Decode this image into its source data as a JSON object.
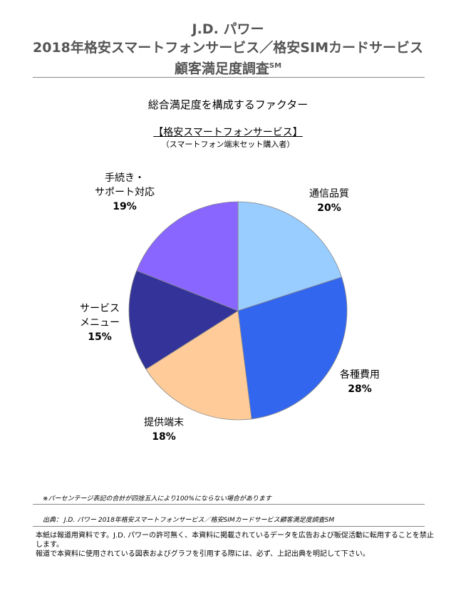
{
  "header": {
    "line1": "J.D. パワー",
    "line2": "2018年格安スマートフォンサービス／格安SIMカードサービス",
    "line3": "顧客満足度調査",
    "line3_mark": "SM"
  },
  "chart_data": {
    "type": "pie",
    "title": "総合満足度を構成するファクター",
    "subtitle": "【格安スマートフォンサービス】",
    "note": "（スマートフォン端末セット購入者）",
    "slices": [
      {
        "label_lines": [
          "通信品質"
        ],
        "value": 20,
        "pct_label": "20%",
        "color": "#99ccff"
      },
      {
        "label_lines": [
          "各種費用"
        ],
        "value": 28,
        "pct_label": "28%",
        "color": "#3366ee"
      },
      {
        "label_lines": [
          "提供端末"
        ],
        "value": 18,
        "pct_label": "18%",
        "color": "#ffcc99"
      },
      {
        "label_lines": [
          "サービス",
          "メニュー"
        ],
        "value": 15,
        "pct_label": "15%",
        "color": "#333399"
      },
      {
        "label_lines": [
          "手続き・",
          "サポート対応"
        ],
        "value": 19,
        "pct_label": "19%",
        "color": "#8866ff"
      }
    ]
  },
  "footer": {
    "footnote": "※パーセンテージ表記の合計が四捨五入により100%にならない場合があります",
    "source": "出典：  J.D. パワー  2018年格安スマートフォンサービス／格安SIMカードサービス顧客満足度調査SM",
    "disclaimer_line1": "本紙は報道用資料です。J.D. パワーの許可無く、本資料に掲載されているデータを広告および販促活動に転用することを禁止します。",
    "disclaimer_line2": "報道で本資料に使用されている図表およびグラフを引用する際には、必ず、上記出典を明記して下さい。"
  }
}
